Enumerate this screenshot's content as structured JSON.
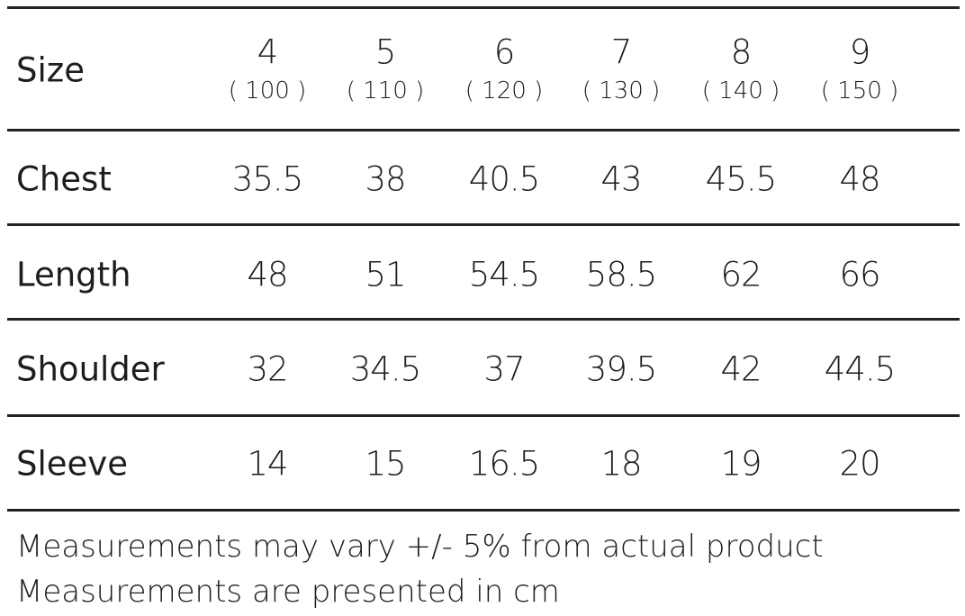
{
  "table": {
    "header": {
      "label": "Size",
      "columns": [
        {
          "size": "4",
          "height": "( 100 )"
        },
        {
          "size": "5",
          "height": "( 110 )"
        },
        {
          "size": "6",
          "height": "( 120 )"
        },
        {
          "size": "7",
          "height": "( 130 )"
        },
        {
          "size": "8",
          "height": "( 140 )"
        },
        {
          "size": "9",
          "height": "( 150 )"
        }
      ]
    },
    "rows": [
      {
        "label": "Chest",
        "values": [
          35.5,
          38,
          40.5,
          43,
          45.5,
          48
        ]
      },
      {
        "label": "Length",
        "values": [
          48,
          51,
          54.5,
          58.5,
          62,
          66
        ]
      },
      {
        "label": "Shoulder",
        "values": [
          32,
          34.5,
          37,
          39.5,
          42,
          44.5
        ]
      },
      {
        "label": "Sleeve",
        "values": [
          14,
          15,
          16.5,
          18,
          19,
          20
        ]
      }
    ]
  },
  "notes": [
    "Measurements may vary +/- 5% from actual product",
    "Measurements are presented in cm"
  ]
}
